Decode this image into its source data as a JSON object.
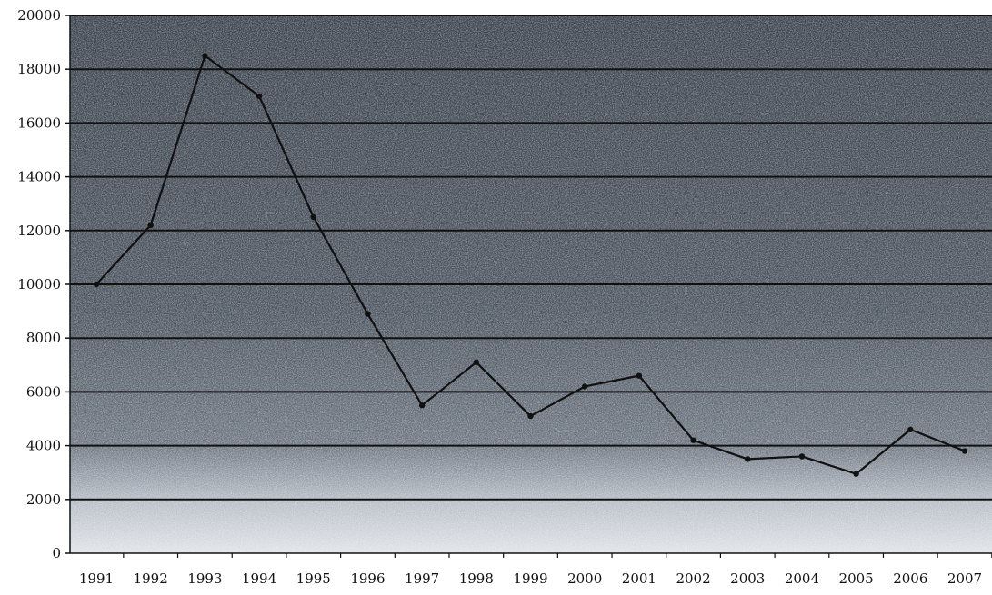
{
  "chart_data": {
    "type": "line",
    "title": "",
    "xlabel": "",
    "ylabel": "",
    "categories": [
      "1991",
      "1992",
      "1993",
      "1994",
      "1995",
      "1996",
      "1997",
      "1998",
      "1999",
      "2000",
      "2001",
      "2002",
      "2003",
      "2004",
      "2005",
      "2006",
      "2007"
    ],
    "series": [
      {
        "values": [
          10000,
          12200,
          18500,
          17000,
          12500,
          8900,
          5500,
          7100,
          5100,
          6200,
          6600,
          4200,
          3500,
          3600,
          2950,
          4600,
          3800
        ]
      }
    ],
    "ylim": [
      0,
      20000
    ],
    "yticks": [
      "0",
      "2000",
      "4000",
      "6000",
      "8000",
      "10000",
      "12000",
      "14000",
      "16000",
      "18000",
      "20000"
    ],
    "grid": true,
    "legend": "none",
    "colors": {
      "line": "#111111",
      "grid": "#111111",
      "background_dark": "#3e4650",
      "background_light": "#c9ced6"
    }
  }
}
